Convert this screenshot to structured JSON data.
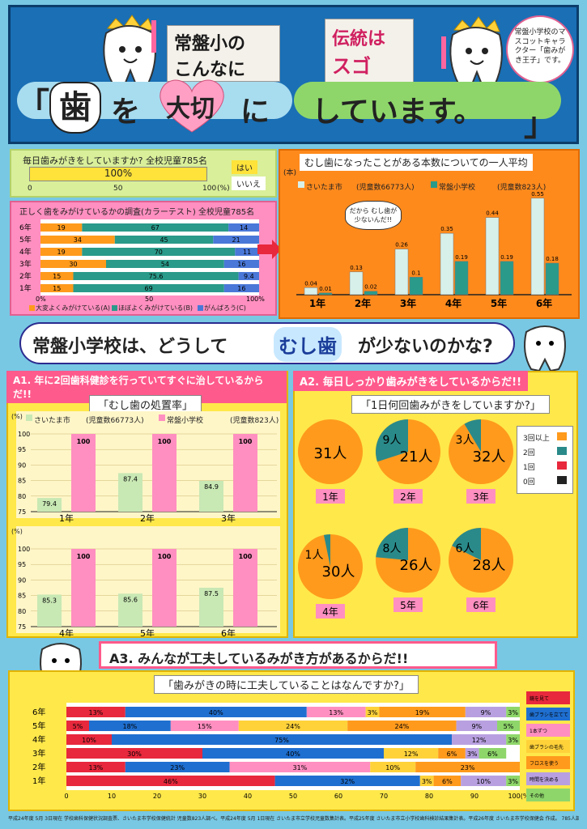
{
  "header": {
    "title_school": "常盤小の",
    "title_konnani": "こんなに",
    "title_tradition": "伝統は",
    "title_sugoi": "スゴイ!!",
    "bracket_open": "「",
    "tooth_char": "歯",
    "wo": "を",
    "taisetsu": "大切",
    "ni": "に",
    "shiteimasu": "しています。",
    "bracket_close": "」",
    "mascot_note": "常盤小学校のマスコットキャラクター「歯みがき王子」です。"
  },
  "brush_daily": {
    "question": "毎日歯みがきをしていますか? 全校児童785名",
    "value_label": "100%",
    "legend_yes": "はい",
    "legend_no": "いいえ",
    "ticks": [
      "0",
      "50",
      "100"
    ],
    "unit": "(%)"
  },
  "proper_brush": {
    "title": "正しく歯をみがけているかの調査(カラーテスト) 全校児童785名",
    "legend": [
      "大変よくみがけている(A)",
      "ほぼよくみがけている(B)",
      "がんばろう(C)"
    ],
    "ticks": [
      "0%",
      "50",
      "100%"
    ]
  },
  "cavity_avg": {
    "title": "むし歯になったことがある本数についての一人平均",
    "unit": "(本)",
    "legend_saitama": "さいたま市",
    "legend_saitama_note": "(児童数66773人)",
    "legend_school": "常盤小学校",
    "legend_school_note": "(児童数823人)",
    "speech": "だから むし歯が 少ないんだ!!"
  },
  "question_banner": {
    "before": "常盤小学校は、どうして",
    "highlight": "むし歯",
    "after": "が少ないのかな?"
  },
  "a1": {
    "header": "A1. 年に2回歯科健診を行っていてすぐに治しているからだ!!",
    "title": "「むし歯の処置率」",
    "legend_saitama": "さいたま市",
    "legend_saitama_note": "(児童数66773人)",
    "legend_school": "常盤小学校",
    "legend_school_note": "(児童数823人)",
    "unit": "(%)",
    "y_ticks_top": [
      "100",
      "95",
      "90",
      "85",
      "80",
      "75"
    ],
    "y_ticks_bottom": [
      "100",
      "95",
      "90",
      "85",
      "80",
      "75"
    ]
  },
  "a2": {
    "header": "A2. 毎日しっかり歯みがきをしているからだ!!",
    "title": "「1日何回歯みがきをしていますか?」",
    "legend": [
      "3回以上",
      "2回",
      "1回",
      "0回"
    ]
  },
  "a3": {
    "header": "A3. みんなが工夫しているみがき方があるからだ!!",
    "title": "「歯みがきの時に工夫していることはなんですか?」",
    "x_ticks": [
      "0",
      "10",
      "20",
      "30",
      "40",
      "50",
      "60",
      "70",
      "80",
      "90",
      "100(%)"
    ],
    "legend": [
      "鏡を見て",
      "歯ブラシを立てて",
      "1本ずつ",
      "歯ブラシの毛先",
      "フロスを使う",
      "時間を決める",
      "その他"
    ]
  },
  "footer": "平成24年度 5月 3日現在 学校歯科保健状況調査票、さいたま市学校保健統計 児童数823人調べ。平成24年度 5月 1日現在 さいたま市立学校児童数集計表。平成25年度 さいたま市立小学校歯科検診結果集計表。平成26年度 さいたま市学校保健会 作成。 785人調べ",
  "chart_data": [
    {
      "type": "bar",
      "title": "毎日歯みがきをしていますか? 全校児童785名",
      "categories": [
        "はい",
        "いいえ"
      ],
      "values": [
        100,
        0
      ],
      "xlim": [
        0,
        100
      ]
    },
    {
      "type": "bar",
      "title": "正しく歯をみがけているかの調査(カラーテスト) 全校児童785名",
      "categories": [
        "6年",
        "5年",
        "4年",
        "3年",
        "2年",
        "1年"
      ],
      "series": [
        {
          "name": "大変よくみがけている(A)",
          "values": [
            19,
            34,
            19,
            30,
            15,
            15
          ]
        },
        {
          "name": "ほぼよくみがけている(B)",
          "values": [
            67,
            45,
            70,
            54,
            75.6,
            69
          ]
        },
        {
          "name": "がんばろう(C)",
          "values": [
            14,
            21,
            11,
            16,
            9.4,
            16
          ]
        }
      ],
      "xlim": [
        0,
        100
      ],
      "stacked": true
    },
    {
      "type": "bar",
      "title": "むし歯になったことがある本数についての一人平均",
      "categories": [
        "1年",
        "2年",
        "3年",
        "4年",
        "5年",
        "6年"
      ],
      "series": [
        {
          "name": "さいたま市",
          "values": [
            0.04,
            0.13,
            0.26,
            0.35,
            0.44,
            0.55
          ]
        },
        {
          "name": "常盤小学校",
          "values": [
            0.01,
            0.02,
            0.1,
            0.19,
            0.19,
            0.18
          ]
        }
      ],
      "ylim": [
        0,
        0.6
      ]
    },
    {
      "type": "bar",
      "title": "むし歯の処置率",
      "categories": [
        "1年",
        "2年",
        "3年",
        "4年",
        "5年",
        "6年"
      ],
      "series": [
        {
          "name": "さいたま市",
          "values": [
            79.4,
            87.4,
            84.9,
            85.3,
            85.6,
            87.5
          ]
        },
        {
          "name": "常盤小学校",
          "values": [
            100,
            100,
            100,
            100,
            100,
            100
          ]
        }
      ],
      "ylim": [
        75,
        100
      ]
    },
    {
      "type": "pie",
      "title": "1日何回歯みがきをしていますか?",
      "categories": [
        "1年",
        "2年",
        "3年",
        "4年",
        "5年",
        "6年"
      ],
      "series": [
        {
          "name": "3回以上",
          "values": [
            31,
            21,
            32,
            30,
            26,
            28
          ]
        },
        {
          "name": "2回",
          "values": [
            0,
            9,
            3,
            1,
            8,
            6
          ]
        }
      ],
      "labels": [
        [
          "31人"
        ],
        [
          "9人",
          "21人"
        ],
        [
          "3人",
          "32人"
        ],
        [
          "1人",
          "30人"
        ],
        [
          "8人",
          "26人"
        ],
        [
          "6人",
          "28人"
        ]
      ]
    },
    {
      "type": "bar",
      "title": "歯みがきの時に工夫していることはなんですか?",
      "stacked": true,
      "categories": [
        "6年",
        "5年",
        "4年",
        "3年",
        "2年",
        "1年"
      ],
      "series_values": [
        [
          13,
          40,
          13,
          3,
          19,
          9,
          3
        ],
        [
          5,
          18,
          15,
          24,
          24,
          9,
          5
        ],
        [
          10,
          75,
          0,
          0,
          0,
          12,
          3
        ],
        [
          30,
          40,
          0,
          12,
          6,
          3,
          6
        ],
        [
          13,
          23,
          31,
          10,
          23,
          0,
          0
        ],
        [
          46,
          32,
          0,
          3,
          6,
          10,
          3
        ]
      ],
      "xlim": [
        0,
        100
      ]
    }
  ]
}
